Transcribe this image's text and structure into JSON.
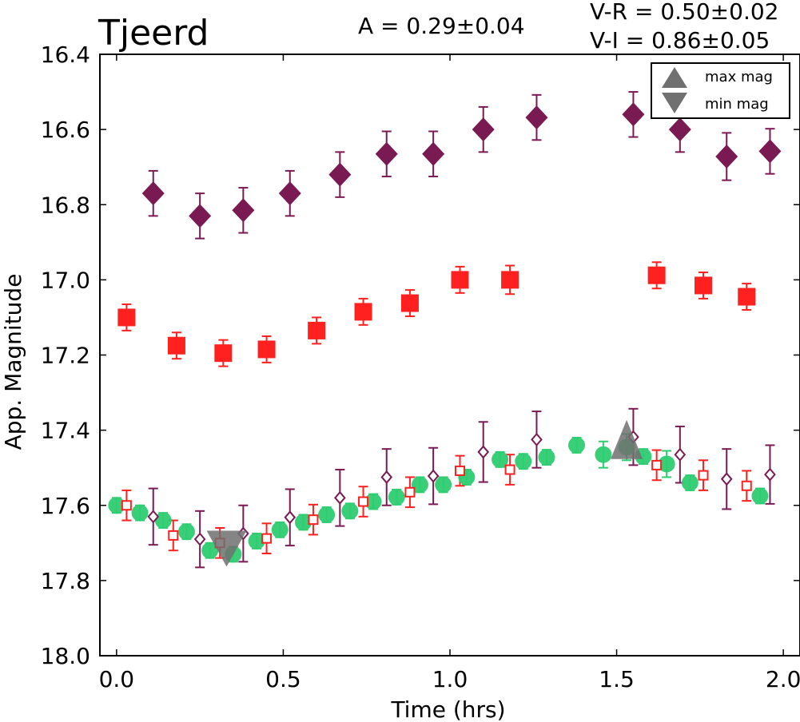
{
  "chart_data": {
    "type": "scatter",
    "title": "Tjeerd",
    "annotations": {
      "amplitude": "A  = 0.29±0.04",
      "v_r": "V-R = 0.50±0.02",
      "v_i": "V-I  = 0.86±0.05"
    },
    "xlabel": "Time (hrs)",
    "ylabel": "App. Magnitude",
    "xlim": [
      -0.05,
      2.05
    ],
    "ylim": [
      16.4,
      18.0
    ],
    "y_inverted": true,
    "grid": false,
    "legend_position": "top-right",
    "x_ticks": [
      "0.0",
      "0.5",
      "1.0",
      "1.5",
      "2.0"
    ],
    "y_ticks": [
      "16.4",
      "16.6",
      "16.8",
      "17.0",
      "17.2",
      "17.4",
      "17.6",
      "17.8",
      "18.0"
    ],
    "colors": {
      "v_band": "#2ecc71",
      "r_band": "#ff2020",
      "i_band": "#7a1a52",
      "marker_extrema": "#707070"
    },
    "legend": [
      {
        "label": "max mag",
        "marker": "triangle-up"
      },
      {
        "label": "min mag",
        "marker": "triangle-down"
      }
    ],
    "series": [
      {
        "id": "i_band",
        "marker": "diamond-filled",
        "points": [
          [
            0.11,
            16.77,
            0.06
          ],
          [
            0.25,
            16.83,
            0.06
          ],
          [
            0.38,
            16.815,
            0.06
          ],
          [
            0.52,
            16.77,
            0.06
          ],
          [
            0.67,
            16.72,
            0.06
          ],
          [
            0.81,
            16.665,
            0.06
          ],
          [
            0.95,
            16.665,
            0.06
          ],
          [
            1.1,
            16.6,
            0.06
          ],
          [
            1.26,
            16.568,
            0.06
          ],
          [
            1.55,
            16.56,
            0.06
          ],
          [
            1.69,
            16.6,
            0.06
          ],
          [
            1.83,
            16.672,
            0.063
          ],
          [
            1.96,
            16.658,
            0.06
          ]
        ]
      },
      {
        "id": "r_band",
        "marker": "square-filled",
        "points": [
          [
            0.03,
            17.1,
            0.035
          ],
          [
            0.18,
            17.175,
            0.035
          ],
          [
            0.32,
            17.195,
            0.035
          ],
          [
            0.45,
            17.185,
            0.035
          ],
          [
            0.6,
            17.135,
            0.035
          ],
          [
            0.74,
            17.085,
            0.035
          ],
          [
            0.88,
            17.062,
            0.035
          ],
          [
            1.03,
            17.0,
            0.035
          ],
          [
            1.18,
            17.0,
            0.038
          ],
          [
            1.62,
            16.988,
            0.035
          ],
          [
            1.76,
            17.015,
            0.035
          ],
          [
            1.89,
            17.045,
            0.035
          ]
        ]
      },
      {
        "id": "v_band",
        "marker": "circle-filled",
        "points": [
          [
            0.0,
            17.6,
            0.02
          ],
          [
            0.07,
            17.62,
            0.02
          ],
          [
            0.14,
            17.64,
            0.02
          ],
          [
            0.21,
            17.67,
            0.02
          ],
          [
            0.28,
            17.72,
            0.02
          ],
          [
            0.35,
            17.73,
            0.02
          ],
          [
            0.42,
            17.695,
            0.02
          ],
          [
            0.49,
            17.665,
            0.02
          ],
          [
            0.56,
            17.645,
            0.02
          ],
          [
            0.63,
            17.625,
            0.02
          ],
          [
            0.7,
            17.615,
            0.02
          ],
          [
            0.77,
            17.59,
            0.02
          ],
          [
            0.84,
            17.578,
            0.02
          ],
          [
            0.91,
            17.545,
            0.02
          ],
          [
            0.98,
            17.545,
            0.02
          ],
          [
            1.05,
            17.525,
            0.02
          ],
          [
            1.15,
            17.478,
            0.02
          ],
          [
            1.22,
            17.483,
            0.02
          ],
          [
            1.29,
            17.472,
            0.02
          ],
          [
            1.38,
            17.44,
            0.02
          ],
          [
            1.46,
            17.465,
            0.035
          ],
          [
            1.53,
            17.445,
            0.035
          ],
          [
            1.58,
            17.47,
            0.02
          ],
          [
            1.65,
            17.49,
            0.035
          ],
          [
            1.72,
            17.54,
            0.02
          ],
          [
            1.93,
            17.575,
            0.02
          ]
        ]
      },
      {
        "id": "r_band_reduced",
        "marker": "square-open",
        "points": [
          [
            0.03,
            17.6,
            0.04
          ],
          [
            0.17,
            17.68,
            0.04
          ],
          [
            0.31,
            17.7,
            0.04
          ],
          [
            0.45,
            17.688,
            0.04
          ],
          [
            0.59,
            17.638,
            0.04
          ],
          [
            0.74,
            17.59,
            0.04
          ],
          [
            0.88,
            17.565,
            0.04
          ],
          [
            1.03,
            17.508,
            0.04
          ],
          [
            1.18,
            17.505,
            0.04
          ],
          [
            1.62,
            17.493,
            0.04
          ],
          [
            1.76,
            17.52,
            0.04
          ],
          [
            1.89,
            17.548,
            0.04
          ]
        ]
      },
      {
        "id": "i_band_reduced",
        "marker": "diamond-open",
        "points": [
          [
            0.11,
            17.63,
            0.075
          ],
          [
            0.25,
            17.69,
            0.075
          ],
          [
            0.38,
            17.675,
            0.075
          ],
          [
            0.52,
            17.632,
            0.075
          ],
          [
            0.67,
            17.58,
            0.075
          ],
          [
            0.81,
            17.525,
            0.075
          ],
          [
            0.95,
            17.522,
            0.075
          ],
          [
            1.1,
            17.458,
            0.08
          ],
          [
            1.26,
            17.425,
            0.075
          ],
          [
            1.55,
            17.418,
            0.075
          ],
          [
            1.69,
            17.465,
            0.075
          ],
          [
            1.83,
            17.53,
            0.08
          ],
          [
            1.96,
            17.518,
            0.078
          ]
        ]
      }
    ],
    "extrema": {
      "max_mag": [
        1.53,
        17.445
      ],
      "min_mag": [
        0.33,
        17.71
      ]
    }
  }
}
